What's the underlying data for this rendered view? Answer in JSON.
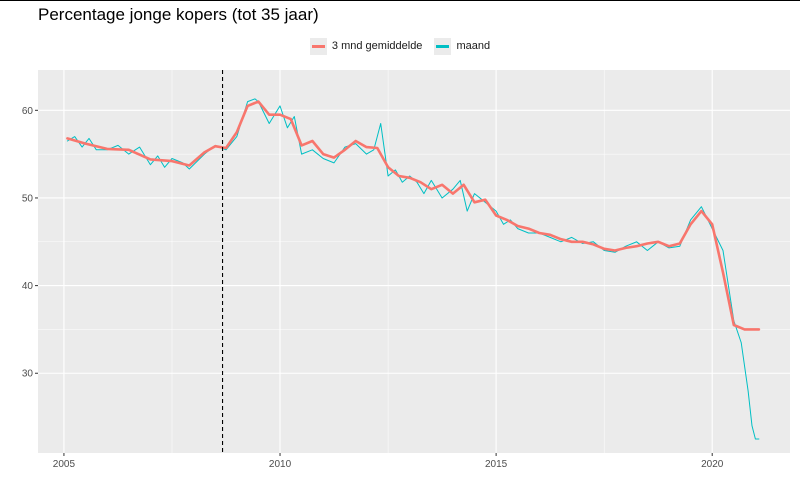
{
  "chart_data": {
    "type": "line",
    "title": "Percentage jonge kopers (tot 35 jaar)",
    "xlabel": "",
    "ylabel": "",
    "xlim": [
      2004.4,
      2021.8
    ],
    "ylim": [
      20.9,
      64.6
    ],
    "x_ticks": [
      2005,
      2010,
      2015,
      2020
    ],
    "y_ticks": [
      30,
      40,
      50,
      60
    ],
    "grid": true,
    "legend_position": "top",
    "vline": {
      "x": 2008.67,
      "style": "dashed"
    },
    "series": [
      {
        "name": "3 mnd gemiddelde",
        "color": "#F8766D",
        "x": [
          2005.08,
          2005.5,
          2006.0,
          2006.5,
          2007.0,
          2007.5,
          2007.9,
          2008.25,
          2008.5,
          2008.75,
          2009.0,
          2009.25,
          2009.5,
          2009.75,
          2010.0,
          2010.25,
          2010.5,
          2010.75,
          2011.0,
          2011.25,
          2011.5,
          2011.75,
          2012.0,
          2012.25,
          2012.5,
          2012.75,
          2013.0,
          2013.25,
          2013.5,
          2013.75,
          2014.0,
          2014.25,
          2014.5,
          2014.75,
          2015.0,
          2015.25,
          2015.5,
          2015.75,
          2016.0,
          2016.25,
          2016.5,
          2016.75,
          2017.0,
          2017.25,
          2017.5,
          2017.75,
          2018.0,
          2018.25,
          2018.5,
          2018.75,
          2019.0,
          2019.25,
          2019.5,
          2019.75,
          2020.0,
          2020.25,
          2020.5,
          2020.75,
          2020.92,
          2021.0,
          2021.08
        ],
        "values": [
          56.8,
          56.2,
          55.6,
          55.5,
          54.4,
          54.2,
          53.7,
          55.2,
          55.9,
          55.7,
          57.5,
          60.5,
          61.0,
          59.5,
          59.5,
          59.0,
          56.0,
          56.5,
          55.0,
          54.6,
          55.5,
          56.5,
          55.8,
          55.7,
          53.5,
          52.5,
          52.3,
          51.8,
          51.0,
          51.5,
          50.5,
          51.5,
          49.5,
          49.8,
          48.0,
          47.5,
          46.8,
          46.5,
          46.0,
          45.8,
          45.3,
          45.0,
          45.0,
          44.7,
          44.2,
          44.0,
          44.3,
          44.5,
          44.8,
          45.0,
          44.5,
          44.8,
          47.0,
          48.5,
          47.0,
          41.5,
          35.5,
          35.0,
          35.0,
          35.0,
          35.0
        ]
      },
      {
        "name": "maand",
        "color": "#00BFC4",
        "x": [
          2005.08,
          2005.25,
          2005.42,
          2005.58,
          2005.75,
          2006.0,
          2006.25,
          2006.5,
          2006.75,
          2007.0,
          2007.17,
          2007.33,
          2007.5,
          2007.75,
          2007.9,
          2008.25,
          2008.5,
          2008.75,
          2009.0,
          2009.25,
          2009.42,
          2009.5,
          2009.75,
          2010.0,
          2010.17,
          2010.33,
          2010.5,
          2010.75,
          2011.0,
          2011.25,
          2011.5,
          2011.75,
          2012.0,
          2012.17,
          2012.33,
          2012.5,
          2012.67,
          2012.83,
          2013.0,
          2013.17,
          2013.33,
          2013.5,
          2013.75,
          2014.0,
          2014.17,
          2014.33,
          2014.5,
          2014.75,
          2015.0,
          2015.17,
          2015.33,
          2015.5,
          2015.75,
          2016.0,
          2016.25,
          2016.5,
          2016.75,
          2017.0,
          2017.25,
          2017.5,
          2017.75,
          2018.0,
          2018.25,
          2018.5,
          2018.75,
          2019.0,
          2019.25,
          2019.5,
          2019.75,
          2020.0,
          2020.25,
          2020.5,
          2020.67,
          2020.83,
          2020.92,
          2021.0,
          2021.08
        ],
        "values": [
          56.5,
          57.0,
          55.8,
          56.8,
          55.5,
          55.5,
          56.0,
          55.0,
          55.8,
          53.8,
          54.8,
          53.5,
          54.5,
          54.0,
          53.3,
          55.0,
          56.0,
          55.5,
          57.0,
          61.0,
          61.3,
          61.0,
          58.5,
          60.5,
          58.0,
          59.3,
          55.0,
          55.5,
          54.5,
          54.0,
          55.8,
          56.2,
          55.0,
          55.5,
          58.5,
          52.5,
          53.2,
          51.8,
          52.5,
          51.8,
          50.5,
          52.0,
          50.0,
          51.0,
          52.0,
          48.5,
          50.5,
          49.5,
          48.5,
          47.0,
          47.5,
          46.5,
          46.0,
          46.0,
          45.5,
          45.0,
          45.5,
          44.8,
          45.0,
          44.0,
          43.8,
          44.5,
          45.0,
          44.0,
          45.0,
          44.3,
          44.5,
          47.5,
          49.0,
          46.5,
          44.0,
          36.0,
          33.5,
          28.0,
          24.0,
          22.5,
          22.5
        ]
      }
    ]
  }
}
